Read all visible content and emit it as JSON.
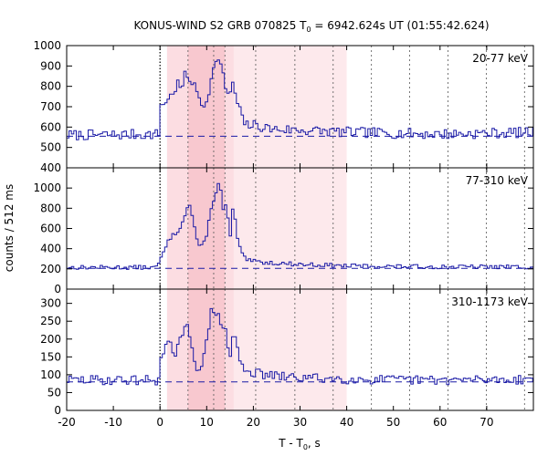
{
  "chart_data": {
    "type": "line",
    "title": "KONUS-WIND S2 GRB 070825 T",
    "title_sub": "0",
    "title_rest": " = 6942.624s UT (01:55:42.624)",
    "xlabel": "T - T",
    "xlabel_sub": "0",
    "xlabel_rest": ", s",
    "ylabel": "counts / 512 ms",
    "xlim": [
      -20,
      80
    ],
    "xticks": [
      -20,
      -10,
      0,
      10,
      20,
      30,
      40,
      50,
      60,
      70
    ],
    "xtick_labels": [
      "-20",
      "-10",
      "0",
      "10",
      "20",
      "30",
      "40",
      "50",
      "60",
      "70"
    ],
    "intervals": {
      "inner": [
        1.5,
        15.8
      ],
      "peak": [
        6.0,
        13.9
      ],
      "outer": [
        15.8,
        40.0
      ]
    },
    "vertical_markers": [
      0,
      6.0,
      11.5,
      13.9,
      20.5,
      28.9,
      37.1,
      45.3,
      53.5,
      61.7,
      69.9,
      78.1
    ],
    "panels": [
      {
        "band": "20-77 keV",
        "ylim": [
          400,
          1000
        ],
        "yticks": [
          400,
          500,
          600,
          700,
          800,
          900,
          1000
        ],
        "ytick_labels": [
          "400",
          "500",
          "600",
          "700",
          "800",
          "900",
          "1000"
        ],
        "background": 555,
        "knots": [
          [
            -20,
            560
          ],
          [
            -0.3,
            565
          ],
          [
            0,
            700
          ],
          [
            1,
            725
          ],
          [
            2,
            740
          ],
          [
            3,
            780
          ],
          [
            4,
            820
          ],
          [
            4.5,
            770
          ],
          [
            5.2,
            850
          ],
          [
            6.5,
            840
          ],
          [
            7.5,
            790
          ],
          [
            8.5,
            740
          ],
          [
            9.5,
            700
          ],
          [
            10.3,
            770
          ],
          [
            11,
            830
          ],
          [
            11.5,
            880
          ],
          [
            12,
            940
          ],
          [
            12.8,
            920
          ],
          [
            13.5,
            850
          ],
          [
            14.2,
            780
          ],
          [
            15,
            760
          ],
          [
            15.8,
            820
          ],
          [
            16.3,
            730
          ],
          [
            17,
            700
          ],
          [
            17.5,
            640
          ],
          [
            18.5,
            610
          ],
          [
            20,
            610
          ],
          [
            24,
            590
          ],
          [
            30,
            585
          ],
          [
            40,
            575
          ],
          [
            50,
            570
          ],
          [
            60,
            565
          ],
          [
            70,
            570
          ],
          [
            80,
            575
          ]
        ],
        "noise": 15,
        "seed": 7
      },
      {
        "band": "77-310 keV",
        "ylim": [
          0,
          1200
        ],
        "yticks": [
          0,
          200,
          400,
          600,
          800,
          1000
        ],
        "ytick_labels": [
          "0",
          "200",
          "400",
          "600",
          "800",
          "1000"
        ],
        "background": 205,
        "knots": [
          [
            -20,
            215
          ],
          [
            -0.5,
            215
          ],
          [
            0,
            300
          ],
          [
            1,
            380
          ],
          [
            2,
            500
          ],
          [
            3,
            540
          ],
          [
            4,
            580
          ],
          [
            5,
            700
          ],
          [
            5.5,
            760
          ],
          [
            6.3,
            850
          ],
          [
            7,
            700
          ],
          [
            7.8,
            520
          ],
          [
            8.5,
            400
          ],
          [
            9.3,
            440
          ],
          [
            10,
            550
          ],
          [
            10.6,
            700
          ],
          [
            11.2,
            850
          ],
          [
            11.8,
            920
          ],
          [
            12.4,
            1060
          ],
          [
            13,
            980
          ],
          [
            13.6,
            750
          ],
          [
            14.2,
            850
          ],
          [
            15,
            500
          ],
          [
            15.8,
            880
          ],
          [
            16.3,
            560
          ],
          [
            17,
            420
          ],
          [
            17.8,
            320
          ],
          [
            19,
            280
          ],
          [
            22,
            265
          ],
          [
            30,
            245
          ],
          [
            40,
            230
          ],
          [
            50,
            225
          ],
          [
            60,
            220
          ],
          [
            70,
            220
          ],
          [
            80,
            220
          ]
        ],
        "noise": 12,
        "seed": 13
      },
      {
        "band": "310-1173 keV",
        "ylim": [
          0,
          340
        ],
        "yticks": [
          0,
          50,
          100,
          150,
          200,
          250,
          300
        ],
        "ytick_labels": [
          "0",
          "50",
          "100",
          "150",
          "200",
          "250",
          "300"
        ],
        "background": 80,
        "knots": [
          [
            -20,
            85
          ],
          [
            -0.5,
            85
          ],
          [
            0,
            130
          ],
          [
            1,
            170
          ],
          [
            2,
            190
          ],
          [
            3,
            150
          ],
          [
            4,
            190
          ],
          [
            5,
            200
          ],
          [
            5.5,
            240
          ],
          [
            6.2,
            230
          ],
          [
            7,
            170
          ],
          [
            7.7,
            130
          ],
          [
            8.5,
            110
          ],
          [
            9.3,
            140
          ],
          [
            10,
            190
          ],
          [
            10.7,
            260
          ],
          [
            11.3,
            290
          ],
          [
            11.9,
            280
          ],
          [
            12.5,
            260
          ],
          [
            13.2,
            220
          ],
          [
            13.9,
            250
          ],
          [
            14.5,
            180
          ],
          [
            15.2,
            140
          ],
          [
            15.8,
            240
          ],
          [
            16.3,
            190
          ],
          [
            17,
            140
          ],
          [
            18,
            120
          ],
          [
            20,
            105
          ],
          [
            25,
            95
          ],
          [
            30,
            92
          ],
          [
            40,
            88
          ],
          [
            50,
            85
          ],
          [
            60,
            85
          ],
          [
            70,
            86
          ],
          [
            80,
            88
          ]
        ],
        "noise": 8,
        "seed": 29
      }
    ]
  }
}
